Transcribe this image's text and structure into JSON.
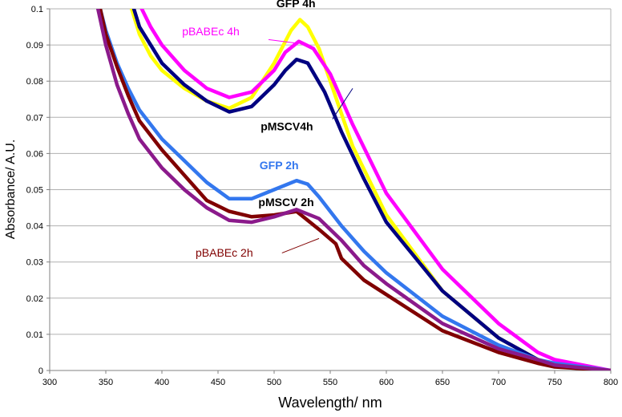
{
  "chart_data": {
    "type": "line",
    "title": "",
    "xlabel": "Wavelength/ nm",
    "ylabel": "Absorbance/ A.U.",
    "xlim": [
      300,
      800
    ],
    "ylim": [
      0,
      0.1
    ],
    "x_ticks": [
      "300",
      "350",
      "400",
      "450",
      "500",
      "550",
      "600",
      "650",
      "700",
      "750",
      "800"
    ],
    "y_ticks": [
      "0",
      "0.01",
      "0.02",
      "0.03",
      "0.04",
      "0.05",
      "0.06",
      "0.07",
      "0.08",
      "0.09",
      "0.1"
    ],
    "grid": "horizontal",
    "legend": "none",
    "series": [
      {
        "name": "GFP 4h",
        "color": "#ffff00",
        "values": [
          [
            373,
            0.1
          ],
          [
            380,
            0.093
          ],
          [
            390,
            0.087
          ],
          [
            400,
            0.083
          ],
          [
            420,
            0.078
          ],
          [
            440,
            0.0745
          ],
          [
            460,
            0.0725
          ],
          [
            480,
            0.0755
          ],
          [
            500,
            0.085
          ],
          [
            515,
            0.094
          ],
          [
            523,
            0.097
          ],
          [
            530,
            0.095
          ],
          [
            540,
            0.089
          ],
          [
            550,
            0.08
          ],
          [
            570,
            0.062
          ],
          [
            600,
            0.043
          ],
          [
            650,
            0.022
          ],
          [
            700,
            0.009
          ],
          [
            735,
            0.003
          ],
          [
            750,
            0.0015
          ],
          [
            800,
            0.0
          ]
        ]
      },
      {
        "name": "pBABEc 4h",
        "color": "#ff00ff",
        "values": [
          [
            382,
            0.1
          ],
          [
            390,
            0.095
          ],
          [
            400,
            0.09
          ],
          [
            420,
            0.083
          ],
          [
            440,
            0.078
          ],
          [
            460,
            0.0755
          ],
          [
            480,
            0.077
          ],
          [
            500,
            0.083
          ],
          [
            510,
            0.088
          ],
          [
            522,
            0.091
          ],
          [
            535,
            0.089
          ],
          [
            550,
            0.082
          ],
          [
            570,
            0.068
          ],
          [
            600,
            0.049
          ],
          [
            650,
            0.028
          ],
          [
            700,
            0.013
          ],
          [
            735,
            0.005
          ],
          [
            750,
            0.003
          ],
          [
            800,
            0.0
          ]
        ]
      },
      {
        "name": "pMSCV4h",
        "color": "#000080",
        "values": [
          [
            375,
            0.1
          ],
          [
            380,
            0.095
          ],
          [
            390,
            0.09
          ],
          [
            400,
            0.085
          ],
          [
            420,
            0.079
          ],
          [
            440,
            0.0745
          ],
          [
            460,
            0.0715
          ],
          [
            480,
            0.073
          ],
          [
            500,
            0.079
          ],
          [
            510,
            0.083
          ],
          [
            520,
            0.086
          ],
          [
            530,
            0.085
          ],
          [
            545,
            0.077
          ],
          [
            560,
            0.066
          ],
          [
            580,
            0.053
          ],
          [
            600,
            0.041
          ],
          [
            650,
            0.022
          ],
          [
            700,
            0.009
          ],
          [
            735,
            0.003
          ],
          [
            750,
            0.0015
          ],
          [
            800,
            0.0
          ]
        ]
      },
      {
        "name": "GFP 2h",
        "color": "#3377ee",
        "values": [
          [
            345,
            0.1
          ],
          [
            350,
            0.094
          ],
          [
            360,
            0.085
          ],
          [
            370,
            0.078
          ],
          [
            380,
            0.072
          ],
          [
            400,
            0.064
          ],
          [
            420,
            0.058
          ],
          [
            440,
            0.052
          ],
          [
            460,
            0.0475
          ],
          [
            480,
            0.0475
          ],
          [
            500,
            0.05
          ],
          [
            520,
            0.0525
          ],
          [
            530,
            0.0515
          ],
          [
            540,
            0.048
          ],
          [
            560,
            0.04
          ],
          [
            580,
            0.033
          ],
          [
            600,
            0.027
          ],
          [
            650,
            0.015
          ],
          [
            700,
            0.007
          ],
          [
            735,
            0.003
          ],
          [
            750,
            0.002
          ],
          [
            800,
            0.0
          ]
        ]
      },
      {
        "name": "pMSCV 2h",
        "color": "#800000",
        "values": [
          [
            345,
            0.1
          ],
          [
            350,
            0.093
          ],
          [
            360,
            0.084
          ],
          [
            370,
            0.076
          ],
          [
            380,
            0.069
          ],
          [
            400,
            0.061
          ],
          [
            420,
            0.054
          ],
          [
            440,
            0.047
          ],
          [
            460,
            0.044
          ],
          [
            480,
            0.0425
          ],
          [
            500,
            0.043
          ],
          [
            520,
            0.044
          ],
          [
            540,
            0.039
          ],
          [
            555,
            0.035
          ],
          [
            560,
            0.031
          ],
          [
            580,
            0.025
          ],
          [
            600,
            0.021
          ],
          [
            650,
            0.011
          ],
          [
            700,
            0.005
          ],
          [
            735,
            0.002
          ],
          [
            750,
            0.001
          ],
          [
            800,
            0.0
          ]
        ]
      },
      {
        "name": "pBABEc 2h",
        "color": "#8b1a8b",
        "values": [
          [
            343,
            0.1
          ],
          [
            350,
            0.09
          ],
          [
            360,
            0.079
          ],
          [
            370,
            0.071
          ],
          [
            380,
            0.064
          ],
          [
            400,
            0.056
          ],
          [
            420,
            0.05
          ],
          [
            440,
            0.045
          ],
          [
            460,
            0.0415
          ],
          [
            480,
            0.041
          ],
          [
            500,
            0.0425
          ],
          [
            520,
            0.0445
          ],
          [
            540,
            0.042
          ],
          [
            560,
            0.036
          ],
          [
            580,
            0.029
          ],
          [
            600,
            0.024
          ],
          [
            650,
            0.013
          ],
          [
            700,
            0.006
          ],
          [
            735,
            0.003
          ],
          [
            750,
            0.0015
          ],
          [
            800,
            0.0
          ]
        ]
      }
    ],
    "annotations": [
      {
        "text": "GFP 4h",
        "color": "#000000",
        "bold": true,
        "x": 502,
        "y": 0.1004,
        "anchor": "start"
      },
      {
        "text": "pBABEc 4h",
        "color": "#ff00ff",
        "bold": false,
        "x": 418,
        "y": 0.0927,
        "anchor": "start",
        "leader": [
          [
            495,
            0.0915
          ],
          [
            520,
            0.0905
          ]
        ]
      },
      {
        "text": "pMSCV4h",
        "color": "#000000",
        "bold": true,
        "x": 488,
        "y": 0.0664,
        "anchor": "start",
        "leader": [
          [
            552,
            0.0695
          ],
          [
            570,
            0.078
          ]
        ]
      },
      {
        "text": "GFP 2h",
        "color": "#3377ee",
        "bold": true,
        "x": 487,
        "y": 0.0556,
        "anchor": "start"
      },
      {
        "text": "pMSCV 2h",
        "color": "#000000",
        "bold": true,
        "x": 486,
        "y": 0.0455,
        "anchor": "start"
      },
      {
        "text": "pBABEc 2h",
        "color": "#800000",
        "bold": false,
        "x": 430,
        "y": 0.0315,
        "anchor": "start",
        "leader": [
          [
            507,
            0.0325
          ],
          [
            540,
            0.0365
          ]
        ]
      }
    ]
  }
}
